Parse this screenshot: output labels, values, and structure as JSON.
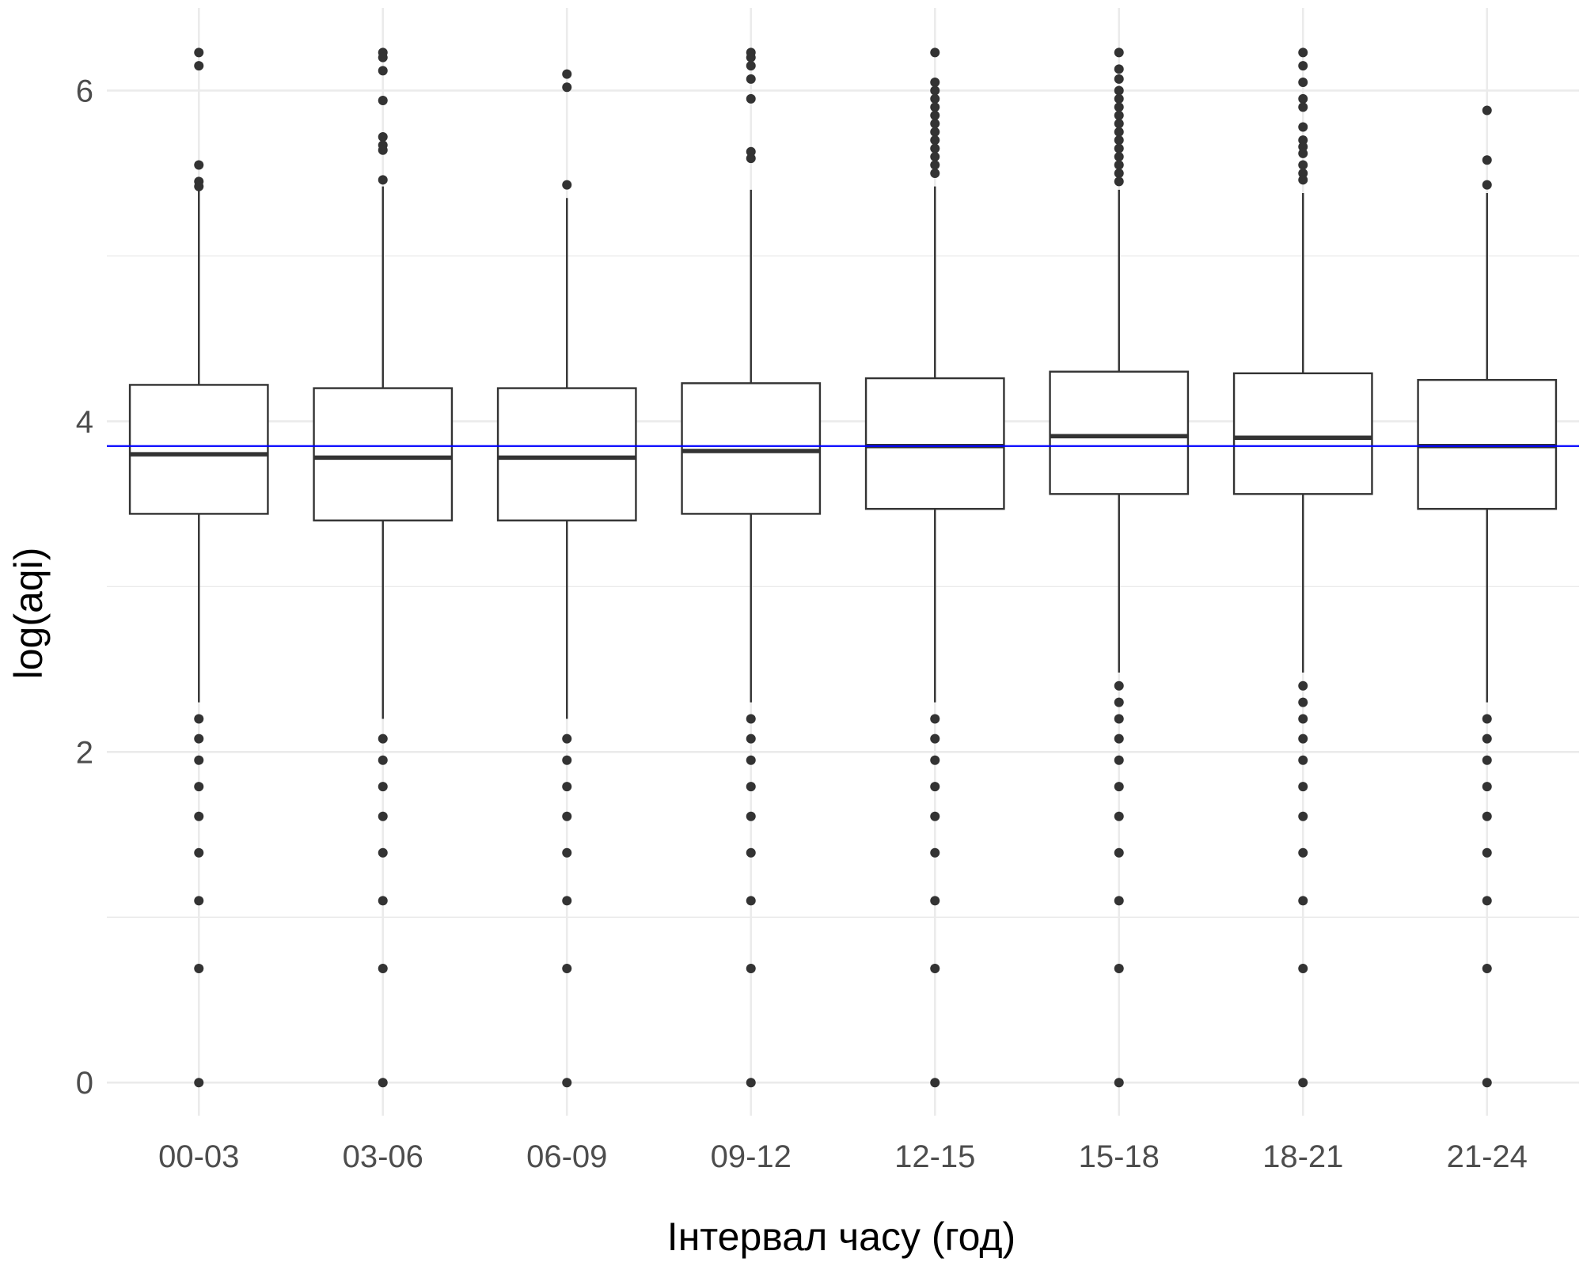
{
  "chart_data": {
    "type": "box",
    "title": "",
    "xlabel": "Інтервал часу (год)",
    "ylabel": "log(aqi)",
    "ylim": [
      -0.2,
      6.5
    ],
    "yticks": [
      0,
      2,
      4,
      6
    ],
    "ygrid_minor": [
      1,
      3,
      5
    ],
    "grid": true,
    "reference_line": {
      "y": 3.85,
      "color": "#0000ff"
    },
    "colors": {
      "box_stroke": "#333333",
      "outlier": "#333333",
      "grid": "#ebebeb",
      "reference": "#0000ff"
    },
    "categories": [
      "00-03",
      "03-06",
      "06-09",
      "09-12",
      "12-15",
      "15-18",
      "18-21",
      "21-24"
    ],
    "boxes": [
      {
        "whisker_low": 2.3,
        "q1": 3.44,
        "median": 3.8,
        "q3": 4.22,
        "whisker_high": 5.4,
        "outliers": [
          6.23,
          6.15,
          5.55,
          5.45,
          5.42,
          2.2,
          2.08,
          1.95,
          1.79,
          1.61,
          1.39,
          1.1,
          0.69,
          0
        ]
      },
      {
        "whisker_low": 2.2,
        "q1": 3.4,
        "median": 3.78,
        "q3": 4.2,
        "whisker_high": 5.42,
        "outliers": [
          6.23,
          6.2,
          6.12,
          5.94,
          5.72,
          5.67,
          5.64,
          5.46,
          2.08,
          1.95,
          1.79,
          1.61,
          1.39,
          1.1,
          0.69,
          0
        ]
      },
      {
        "whisker_low": 2.2,
        "q1": 3.4,
        "median": 3.78,
        "q3": 4.2,
        "whisker_high": 5.35,
        "outliers": [
          6.1,
          6.02,
          5.43,
          2.08,
          1.95,
          1.79,
          1.61,
          1.39,
          1.1,
          0.69,
          0
        ]
      },
      {
        "whisker_low": 2.3,
        "q1": 3.44,
        "median": 3.82,
        "q3": 4.23,
        "whisker_high": 5.4,
        "outliers": [
          6.23,
          6.2,
          6.15,
          6.07,
          5.95,
          5.63,
          5.59,
          2.2,
          2.08,
          1.95,
          1.79,
          1.61,
          1.39,
          1.1,
          0.69,
          0
        ]
      },
      {
        "whisker_low": 2.3,
        "q1": 3.47,
        "median": 3.85,
        "q3": 4.26,
        "whisker_high": 5.42,
        "outliers": [
          6.23,
          6.05,
          6.0,
          5.95,
          5.9,
          5.85,
          5.8,
          5.75,
          5.7,
          5.65,
          5.6,
          5.55,
          5.5,
          2.2,
          2.08,
          1.95,
          1.79,
          1.61,
          1.39,
          1.1,
          0.69,
          0
        ]
      },
      {
        "whisker_low": 2.48,
        "q1": 3.56,
        "median": 3.91,
        "q3": 4.3,
        "whisker_high": 5.4,
        "outliers": [
          6.23,
          6.13,
          6.07,
          6.0,
          5.95,
          5.9,
          5.85,
          5.8,
          5.75,
          5.7,
          5.65,
          5.6,
          5.55,
          5.5,
          5.45,
          2.4,
          2.3,
          2.2,
          2.08,
          1.95,
          1.79,
          1.61,
          1.39,
          1.1,
          0.69,
          0
        ]
      },
      {
        "whisker_low": 2.48,
        "q1": 3.56,
        "median": 3.9,
        "q3": 4.29,
        "whisker_high": 5.38,
        "outliers": [
          6.23,
          6.15,
          6.05,
          5.95,
          5.9,
          5.78,
          5.7,
          5.66,
          5.62,
          5.55,
          5.5,
          5.46,
          2.4,
          2.3,
          2.2,
          2.08,
          1.95,
          1.79,
          1.61,
          1.39,
          1.1,
          0.69,
          0
        ]
      },
      {
        "whisker_low": 2.3,
        "q1": 3.47,
        "median": 3.85,
        "q3": 4.25,
        "whisker_high": 5.38,
        "outliers": [
          5.88,
          5.58,
          5.43,
          2.2,
          2.08,
          1.95,
          1.79,
          1.61,
          1.39,
          1.1,
          0.69,
          0
        ]
      }
    ]
  }
}
